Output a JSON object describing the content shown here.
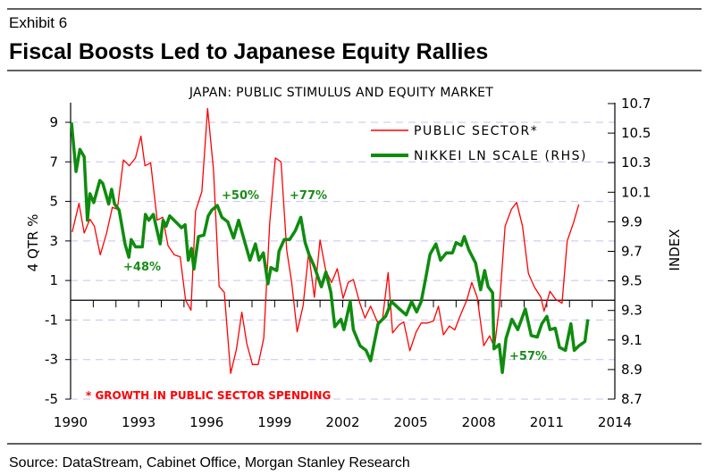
{
  "header": {
    "exhibit": "Exhibit 6",
    "title": "Fiscal Boosts Led to Japanese Equity Rallies"
  },
  "footer": {
    "source": "Source: DataStream, Cabinet Office, Morgan Stanley Research"
  },
  "chart_data": {
    "type": "line",
    "title": "JAPAN: PUBLIC STIMULUS AND EQUITY MARKET",
    "xlabel": "",
    "ylabel": "4 QTR %",
    "ylabel_right": "INDEX",
    "xlim": [
      1990,
      2014
    ],
    "ylim": [
      -5,
      9
    ],
    "ylim_right": [
      8.7,
      10.7
    ],
    "x_ticks": [
      "1990",
      "1993",
      "1996",
      "1999",
      "2002",
      "2005",
      "2008",
      "2011",
      "2014"
    ],
    "y_ticks": [
      "9",
      "7",
      "5",
      "3",
      "1",
      "-1",
      "-3",
      "-5"
    ],
    "y_ticks_right": [
      "10.7",
      "10.5",
      "10.3",
      "10.1",
      "9.9",
      "9.7",
      "9.5",
      "9.3",
      "9.1",
      "8.9",
      "8.7"
    ],
    "grid": true,
    "legend_position": "top-right",
    "footnote": "* GROWTH IN PUBLIC SECTOR SPENDING",
    "annotations": [
      "+48%",
      "+50%",
      "+77%",
      "+57%"
    ],
    "colors": {
      "public": "#ff0000",
      "nikkei": "#0e8c0e",
      "grid": "#c8c0f0"
    },
    "series": [
      {
        "name": "PUBLIC SECTOR*",
        "axis": "left",
        "x": [
          1990.07,
          1990.37,
          1990.6,
          1990.85,
          1991.05,
          1991.31,
          1991.59,
          1991.84,
          1992.06,
          1992.33,
          1992.59,
          1992.86,
          1993.1,
          1993.28,
          1993.53,
          1993.82,
          1994.06,
          1994.3,
          1994.57,
          1994.83,
          1995.07,
          1995.31,
          1995.51,
          1995.79,
          1996.04,
          1996.3,
          1996.55,
          1996.78,
          1997.06,
          1997.31,
          1997.55,
          1997.77,
          1998.02,
          1998.27,
          1998.52,
          1998.78,
          1999.03,
          1999.28,
          1999.53,
          1999.75,
          1999.99,
          2000.25,
          2000.5,
          2000.75,
          2001.0,
          2001.25,
          2001.51,
          2001.76,
          2002.02,
          2002.24,
          2002.47,
          2002.74,
          2002.98,
          2003.23,
          2003.53,
          2003.75,
          2004.0,
          2004.2,
          2004.48,
          2004.69,
          2004.96,
          2005.24,
          2005.46,
          2005.74,
          2006.0,
          2006.22,
          2006.44,
          2006.7,
          2006.94,
          2007.19,
          2007.47,
          2007.69,
          2007.93,
          2008.22,
          2008.48,
          2008.69,
          2008.91,
          2009.16,
          2009.44,
          2009.67,
          2009.93,
          2010.19,
          2010.46,
          2010.74,
          2010.88,
          2011.14,
          2011.39,
          2011.67,
          2011.9,
          2012.17,
          2012.41
        ],
        "y": [
          3.45,
          4.9,
          3.4,
          4.1,
          3.75,
          2.3,
          3.4,
          4.7,
          4.6,
          7.1,
          6.8,
          7.2,
          8.3,
          6.8,
          6.95,
          4.05,
          4.2,
          2.75,
          2.3,
          2.2,
          0,
          -0.5,
          4.5,
          5.5,
          9.7,
          6.6,
          0.7,
          0.4,
          -3.7,
          -2.5,
          -0.6,
          -2.2,
          -3.25,
          -3.25,
          -1.9,
          3.9,
          7.2,
          7.0,
          2.55,
          0.9,
          -1.6,
          -0.3,
          2.4,
          0.15,
          3.05,
          1.5,
          0.9,
          1.6,
          0.1,
          0.9,
          1.05,
          -0.1,
          -0.9,
          -0.3,
          -1.1,
          -1.0,
          1.4,
          -1.65,
          -1.25,
          -1.1,
          -2.55,
          -1.6,
          -1.15,
          -1.15,
          -1.05,
          -0.3,
          -1.75,
          -1.3,
          -1.5,
          -0.75,
          0,
          0.9,
          0.15,
          -2.3,
          -1.8,
          -2.4,
          -0.3,
          3.75,
          4.6,
          4.95,
          3.75,
          1.35,
          0.65,
          0.15,
          -0.55,
          0.45,
          0.05,
          -0.15,
          3.0,
          3.9,
          4.85
        ]
      },
      {
        "name": "NIKKEI LN SCALE (RHS)",
        "axis": "right",
        "x": [
          1990.04,
          1990.24,
          1990.41,
          1990.6,
          1990.74,
          1990.85,
          1991.02,
          1991.29,
          1991.42,
          1991.68,
          1991.81,
          1991.94,
          1992.14,
          1992.4,
          1992.57,
          1992.67,
          1992.86,
          1993.16,
          1993.3,
          1993.45,
          1993.65,
          1993.95,
          1994.08,
          1994.21,
          1994.37,
          1994.63,
          1994.89,
          1995.05,
          1995.19,
          1995.33,
          1995.44,
          1995.64,
          1995.88,
          1996.07,
          1996.23,
          1996.47,
          1996.67,
          1996.93,
          1997.19,
          1997.41,
          1997.65,
          1997.91,
          1998.15,
          1998.31,
          1998.5,
          1998.7,
          1998.83,
          1999.09,
          1999.19,
          1999.42,
          1999.66,
          1999.91,
          2000.15,
          2000.34,
          2000.51,
          2000.74,
          2001.06,
          2001.26,
          2001.48,
          2001.65,
          2001.92,
          2002.05,
          2002.33,
          2002.47,
          2002.77,
          2003.03,
          2003.23,
          2003.56,
          2003.89,
          2004.15,
          2004.5,
          2004.8,
          2005.04,
          2005.26,
          2005.46,
          2005.66,
          2005.85,
          2006.11,
          2006.31,
          2006.57,
          2006.84,
          2007.0,
          2007.23,
          2007.36,
          2007.56,
          2007.86,
          2008.08,
          2008.26,
          2008.41,
          2008.61,
          2008.67,
          2008.9,
          2009.04,
          2009.2,
          2009.46,
          2009.72,
          2010.05,
          2010.31,
          2010.58,
          2010.78,
          2011.0,
          2011.14,
          2011.37,
          2011.56,
          2011.82,
          2012.06,
          2012.21,
          2012.41,
          2012.68,
          2012.81
        ],
        "y": [
          10.57,
          10.24,
          10.39,
          10.34,
          9.91,
          10.09,
          10.03,
          10.18,
          10.16,
          10.02,
          10.12,
          10.02,
          9.98,
          9.75,
          9.66,
          9.78,
          9.73,
          9.73,
          9.95,
          9.91,
          9.95,
          9.75,
          9.91,
          9.87,
          9.94,
          9.9,
          9.86,
          9.88,
          9.64,
          9.72,
          9.58,
          9.8,
          9.81,
          9.94,
          9.98,
          10.01,
          9.93,
          9.9,
          9.79,
          9.91,
          9.78,
          9.64,
          9.75,
          9.64,
          9.69,
          9.48,
          9.59,
          9.57,
          9.7,
          9.78,
          9.78,
          9.84,
          9.93,
          9.76,
          9.68,
          9.6,
          9.46,
          9.56,
          9.42,
          9.19,
          9.24,
          9.17,
          9.36,
          9.17,
          9.06,
          9.03,
          8.96,
          9.21,
          9.26,
          9.36,
          9.31,
          9.27,
          9.36,
          9.29,
          9.36,
          9.52,
          9.68,
          9.75,
          9.64,
          9.69,
          9.69,
          9.76,
          9.74,
          9.8,
          9.71,
          9.62,
          9.44,
          9.57,
          9.46,
          9.42,
          9.04,
          9.07,
          8.88,
          9.11,
          9.24,
          9.17,
          9.31,
          9.13,
          9.12,
          9.21,
          9.26,
          9.17,
          9.18,
          9.05,
          9.03,
          9.21,
          9.03,
          9.06,
          9.09,
          9.24
        ]
      }
    ]
  }
}
